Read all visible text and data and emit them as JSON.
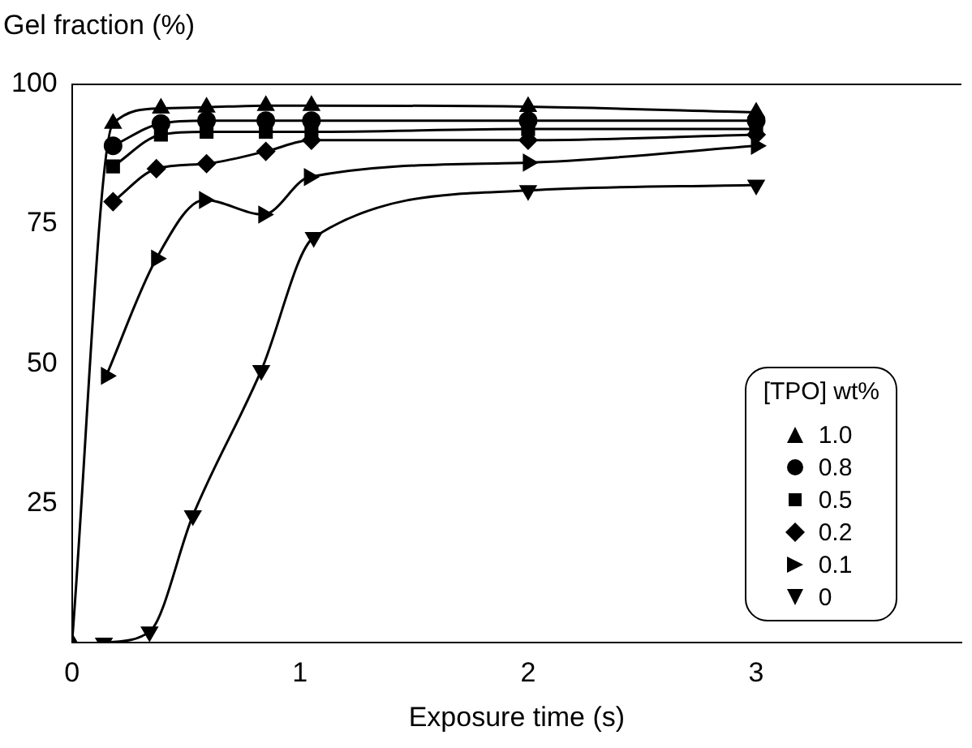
{
  "chart_data": {
    "type": "line",
    "xlabel": "Exposure time (s)",
    "ylabel": "Gel fraction (%)",
    "legend_title": "[TPO] wt%",
    "legend": "bottom right",
    "grid": false,
    "xlim": [
      0,
      3.9
    ],
    "xticks": [
      0,
      1,
      2,
      3
    ],
    "ylim": [
      0,
      100
    ],
    "yticks": [
      {
        "value": 0,
        "label": null
      },
      25,
      50,
      75,
      100
    ],
    "series": [
      {
        "name": "1.0",
        "color": "#000000",
        "marker": "triangle",
        "x": [
          0,
          0.18,
          0.39,
          0.59,
          0.85,
          1.05,
          2,
          3
        ],
        "values": [
          0,
          93,
          95.7,
          95.9,
          96.2,
          96.2,
          96,
          95
        ]
      },
      {
        "name": "0.8",
        "color": "#000000",
        "marker": "circle",
        "x": [
          0.18,
          0.39,
          0.59,
          0.85,
          1.05,
          2,
          3
        ],
        "values": [
          89,
          93,
          93.5,
          93.5,
          93.5,
          93.5,
          93.5
        ]
      },
      {
        "name": "0.5",
        "color": "#000000",
        "marker": "square",
        "x": [
          0.18,
          0.39,
          0.59,
          0.85,
          1.05,
          2,
          3
        ],
        "values": [
          85.3,
          91,
          91.5,
          91.5,
          91.5,
          92,
          92
        ]
      },
      {
        "name": "0.2",
        "color": "#000000",
        "marker": "diamond",
        "x": [
          0.18,
          0.37,
          0.59,
          0.85,
          1.05,
          2,
          3
        ],
        "values": [
          79,
          84.9,
          85.8,
          88,
          90,
          90,
          91
        ]
      },
      {
        "name": "0.1",
        "color": "#000000",
        "marker": "triangle-right",
        "x": [
          0.15,
          0.37,
          0.58,
          0.84,
          1.04,
          2,
          3
        ],
        "values": [
          47.8,
          68.8,
          79.3,
          76.7,
          83.4,
          86,
          89
        ]
      },
      {
        "name": "0",
        "color": "#000000",
        "marker": "triangle-down",
        "x": [
          0.14,
          0.34,
          0.53,
          0.83,
          1.06,
          2,
          3
        ],
        "values": [
          0,
          2,
          22.8,
          48.8,
          72.6,
          81,
          82
        ]
      }
    ]
  }
}
